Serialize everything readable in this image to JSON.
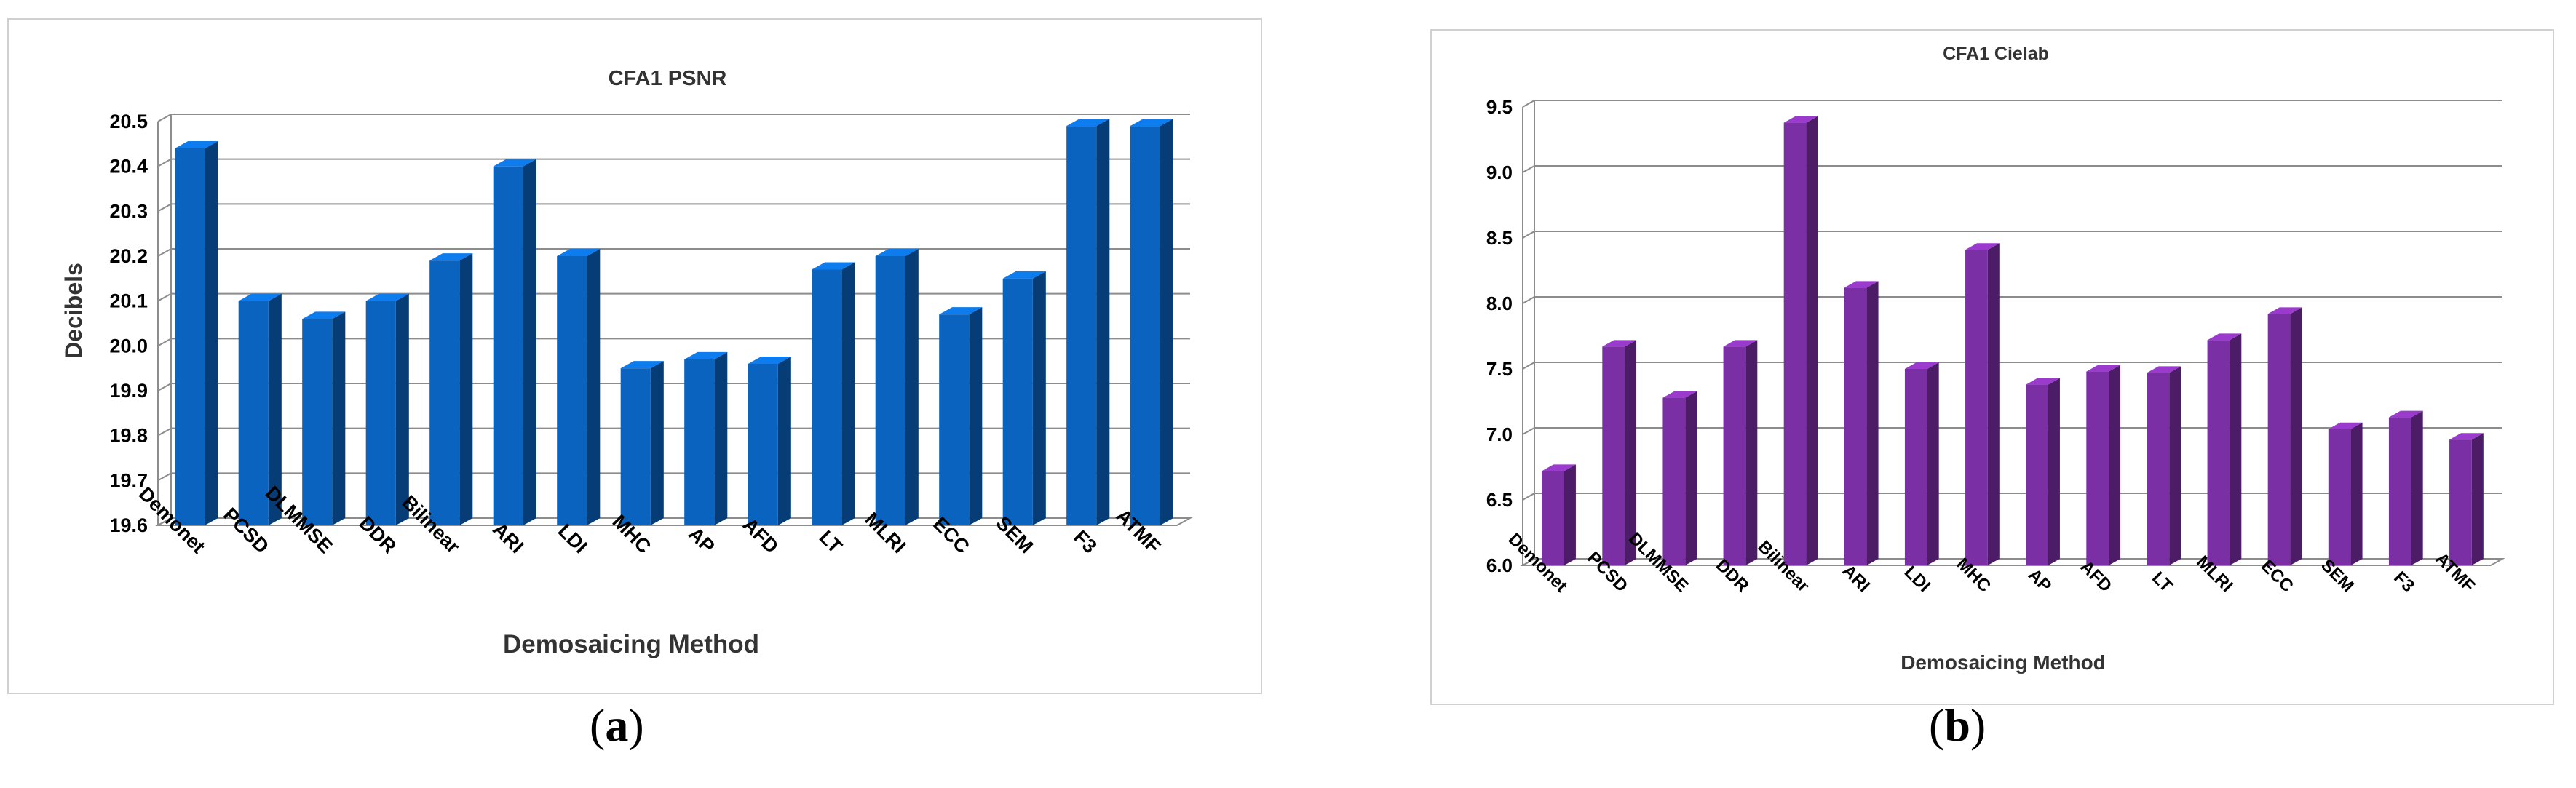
{
  "chart_data": [
    {
      "type": "bar",
      "title": "CFA1 PSNR",
      "xlabel": "Demosaicing Method",
      "ylabel": "Decibels",
      "ylim": [
        19.6,
        20.5
      ],
      "yticks": [
        "19.6",
        "19.7",
        "19.8",
        "19.9",
        "20.0",
        "20.1",
        "20.2",
        "20.3",
        "20.4",
        "20.5"
      ],
      "grid": true,
      "categories": [
        "Demonet",
        "PCSD",
        "DLMMSE",
        "DDR",
        "Bilinear",
        "ARI",
        "LDI",
        "MHC",
        "AP",
        "AFD",
        "LT",
        "MLRI",
        "ECC",
        "SEM",
        "F3",
        "ATMF"
      ],
      "values": [
        20.44,
        20.1,
        20.06,
        20.1,
        20.19,
        20.4,
        20.2,
        19.95,
        19.97,
        19.96,
        20.17,
        20.2,
        20.07,
        20.15,
        20.49,
        20.49
      ],
      "color": "#0a63be",
      "caption": "a"
    },
    {
      "type": "bar",
      "title": "CFA1 Cielab",
      "xlabel": "Demosaicing Method",
      "ylabel": "",
      "ylim": [
        6.0,
        9.5
      ],
      "yticks": [
        "6.0",
        "6.5",
        "7.0",
        "7.5",
        "8.0",
        "8.5",
        "9.0",
        "9.5"
      ],
      "grid": true,
      "categories": [
        "Demonet",
        "PCSD",
        "DLMMSE",
        "DDR",
        "Bilinear",
        "ARI",
        "LDI",
        "MHC",
        "AP",
        "AFD",
        "LT",
        "MLRI",
        "ECC",
        "SEM",
        "F3",
        "ATMF"
      ],
      "values": [
        6.72,
        7.67,
        7.28,
        7.67,
        9.38,
        8.12,
        7.5,
        8.41,
        7.38,
        7.48,
        7.47,
        7.72,
        7.92,
        7.04,
        7.13,
        6.96
      ],
      "color": "#7b2fa5",
      "caption": "b"
    }
  ]
}
